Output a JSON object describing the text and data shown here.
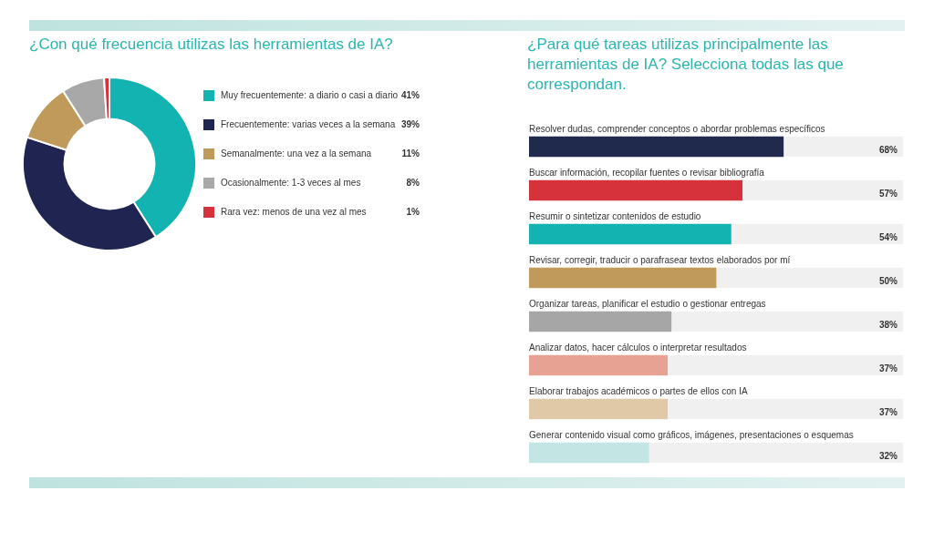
{
  "chart_data": [
    {
      "type": "donut",
      "title": "¿Con qué frecuencia utilizas las herramientas de IA?",
      "categories": [
        "Muy frecuentemente: a diario o casi a diario",
        "Frecuentemente: varias veces a la semana",
        "Semanalmente: una vez a la semana",
        "Ocasionalmente: 1-3 veces al mes",
        "Rara vez: menos de una vez al mes"
      ],
      "values": [
        41,
        39,
        11,
        8,
        1
      ],
      "colors": [
        "#12b3b1",
        "#1f2450",
        "#c09a5b",
        "#a8a8a8",
        "#d6323b"
      ],
      "value_labels": [
        "41%",
        "39%",
        "11%",
        "8%",
        "1%"
      ],
      "legend": "right"
    },
    {
      "type": "bar",
      "orientation": "horizontal",
      "title": "¿Para qué tareas utilizas principalmente las herramientas de IA?  Selecciona todas las que correspondan.",
      "categories": [
        "Resolver dudas, comprender conceptos o abordar problemas específicos",
        "Buscar información, recopilar fuentes o revisar bibliografía",
        "Resumir o sintetizar contenidos de estudio",
        "Revisar, corregir, traducir o parafrasear textos elaborados por mí",
        "Organizar tareas, planificar el estudio o gestionar entregas",
        "Analizar datos, hacer cálculos o interpretar resultados",
        "Elaborar trabajos académicos o partes de ellos con IA",
        "Generar contenido visual como gráficos, imágenes, presentaciones o esquemas"
      ],
      "values": [
        68,
        57,
        54,
        50,
        38,
        37,
        37,
        32
      ],
      "colors": [
        "#1f2a4c",
        "#d6323b",
        "#12b3b1",
        "#c09a5b",
        "#a6a6a6",
        "#e8a293",
        "#dfc9a6",
        "#c3e6e5"
      ],
      "value_labels": [
        "68%",
        "57%",
        "54%",
        "50%",
        "38%",
        "37%",
        "37%",
        "32%"
      ],
      "xlim": [
        0,
        100
      ],
      "tick_labels": false
    }
  ]
}
